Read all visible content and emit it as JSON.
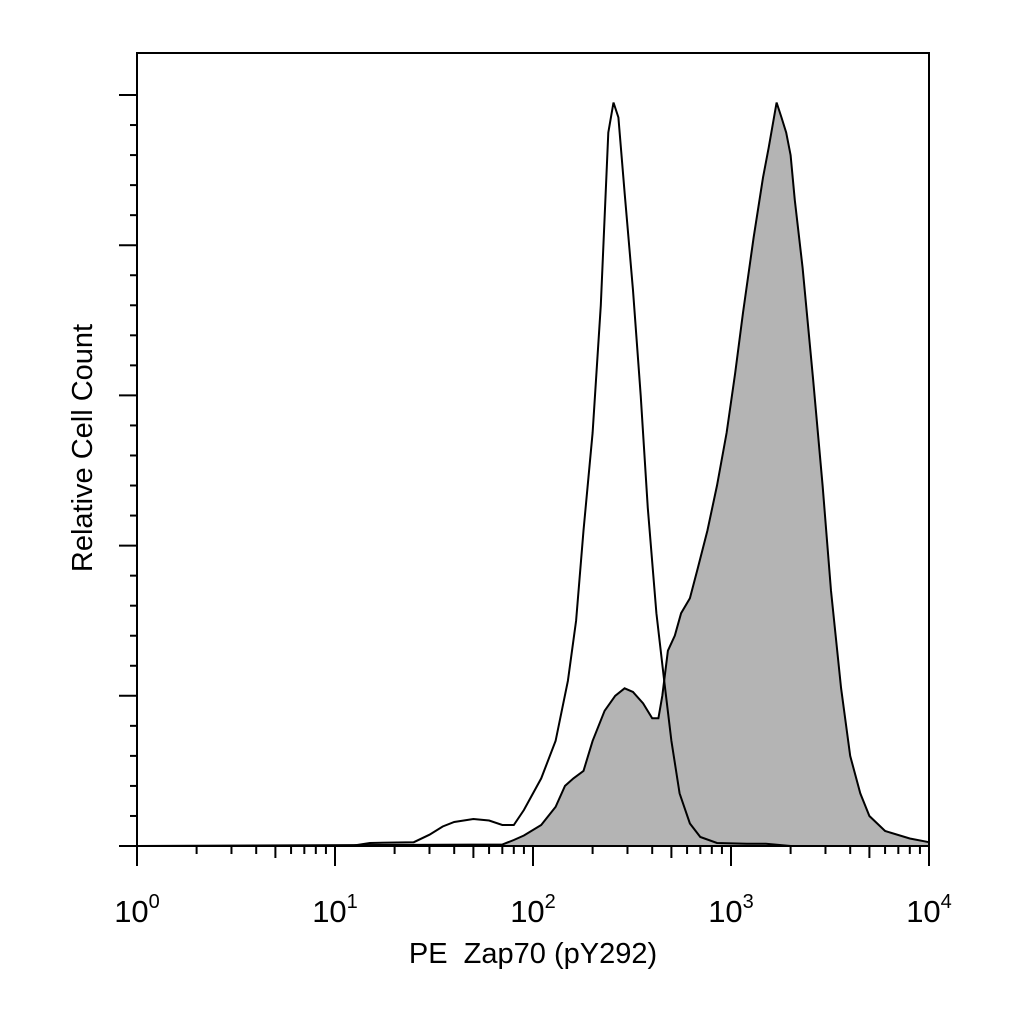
{
  "chart_data": {
    "type": "area",
    "title": "",
    "xlabel": "PE  Zap70 (pY292)",
    "ylabel": "Relative Cell Count",
    "x_scale": "log",
    "xlim": [
      1,
      10000
    ],
    "ylim": [
      0,
      1.05
    ],
    "grid": false,
    "legend": "none",
    "x_ticks": [
      {
        "base": "10",
        "exp": "0"
      },
      {
        "base": "10",
        "exp": "1"
      },
      {
        "base": "10",
        "exp": "2"
      },
      {
        "base": "10",
        "exp": "3"
      },
      {
        "base": "10",
        "exp": "4"
      }
    ],
    "series": [
      {
        "style": "outline",
        "color": "#000000",
        "points": [
          [
            1,
            0.0
          ],
          [
            12,
            0.0
          ],
          [
            15,
            0.004
          ],
          [
            25,
            0.005
          ],
          [
            30,
            0.015
          ],
          [
            35,
            0.026
          ],
          [
            40,
            0.032
          ],
          [
            50,
            0.036
          ],
          [
            60,
            0.034
          ],
          [
            70,
            0.028
          ],
          [
            80,
            0.028
          ],
          [
            90,
            0.048
          ],
          [
            110,
            0.09
          ],
          [
            130,
            0.14
          ],
          [
            150,
            0.22
          ],
          [
            165,
            0.3
          ],
          [
            180,
            0.42
          ],
          [
            200,
            0.55
          ],
          [
            220,
            0.72
          ],
          [
            240,
            0.95
          ],
          [
            255,
            0.99
          ],
          [
            270,
            0.97
          ],
          [
            290,
            0.87
          ],
          [
            320,
            0.74
          ],
          [
            350,
            0.6
          ],
          [
            380,
            0.45
          ],
          [
            420,
            0.31
          ],
          [
            460,
            0.22
          ],
          [
            500,
            0.14
          ],
          [
            550,
            0.07
          ],
          [
            620,
            0.03
          ],
          [
            700,
            0.012
          ],
          [
            850,
            0.004
          ],
          [
            1200,
            0.003
          ],
          [
            1500,
            0.003
          ],
          [
            2000,
            0.0
          ],
          [
            10000,
            0.0
          ]
        ]
      },
      {
        "style": "filled",
        "color": "#b4b4b4",
        "points": [
          [
            1,
            0.0
          ],
          [
            70,
            0.002
          ],
          [
            80,
            0.008
          ],
          [
            90,
            0.014
          ],
          [
            110,
            0.028
          ],
          [
            130,
            0.052
          ],
          [
            145,
            0.08
          ],
          [
            160,
            0.09
          ],
          [
            180,
            0.1
          ],
          [
            200,
            0.14
          ],
          [
            230,
            0.18
          ],
          [
            260,
            0.2
          ],
          [
            290,
            0.21
          ],
          [
            320,
            0.205
          ],
          [
            360,
            0.19
          ],
          [
            400,
            0.17
          ],
          [
            430,
            0.17
          ],
          [
            450,
            0.2
          ],
          [
            480,
            0.26
          ],
          [
            520,
            0.28
          ],
          [
            560,
            0.31
          ],
          [
            620,
            0.33
          ],
          [
            680,
            0.37
          ],
          [
            760,
            0.42
          ],
          [
            850,
            0.48
          ],
          [
            950,
            0.55
          ],
          [
            1050,
            0.63
          ],
          [
            1150,
            0.71
          ],
          [
            1300,
            0.81
          ],
          [
            1450,
            0.89
          ],
          [
            1550,
            0.93
          ],
          [
            1700,
            0.99
          ],
          [
            1800,
            0.97
          ],
          [
            1900,
            0.95
          ],
          [
            2000,
            0.92
          ],
          [
            2100,
            0.86
          ],
          [
            2300,
            0.77
          ],
          [
            2600,
            0.62
          ],
          [
            2900,
            0.48
          ],
          [
            3200,
            0.34
          ],
          [
            3600,
            0.21
          ],
          [
            4000,
            0.12
          ],
          [
            4500,
            0.07
          ],
          [
            5000,
            0.04
          ],
          [
            6000,
            0.02
          ],
          [
            8000,
            0.01
          ],
          [
            10000,
            0.005
          ]
        ]
      }
    ]
  }
}
